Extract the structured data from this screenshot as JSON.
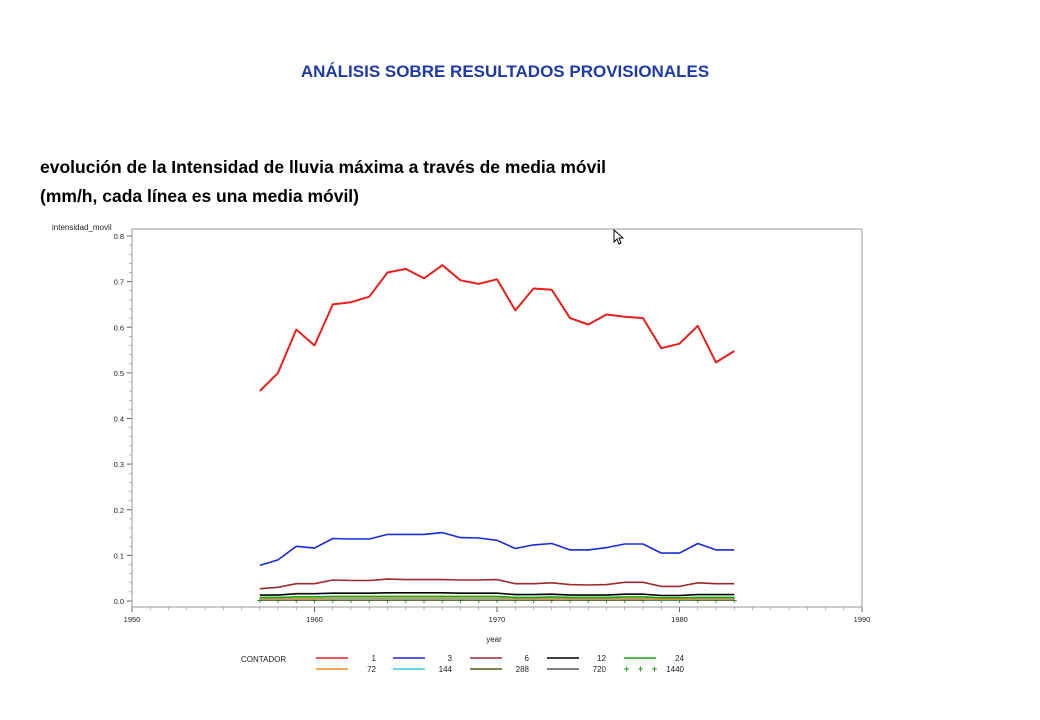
{
  "slide": {
    "title": "ANÁLISIS SOBRE RESULTADOS PROVISIONALES",
    "subtitle_line1": "evolución de la Intensidad de lluvia máxima a través de media móvil",
    "subtitle_line2": "(mm/h, cada línea es una media móvil)"
  },
  "chart_data": {
    "type": "line",
    "ylabel": "intensidad_movil",
    "xlabel": "year",
    "xlim": [
      1950,
      1990
    ],
    "ylim": [
      0.0,
      0.8
    ],
    "x_ticks": [
      "1950",
      "1960",
      "1970",
      "1980",
      "1990"
    ],
    "y_ticks": [
      "0.0",
      "0.1",
      "0.2",
      "0.3",
      "0.4",
      "0.5",
      "0.6",
      "0.7",
      "0.8"
    ],
    "legend_title": "CONTADOR",
    "legend_position": "bottom",
    "x": [
      1957,
      1958,
      1959,
      1960,
      1961,
      1962,
      1963,
      1964,
      1965,
      1966,
      1967,
      1968,
      1969,
      1970,
      1971,
      1972,
      1973,
      1974,
      1975,
      1976,
      1977,
      1978,
      1979,
      1980,
      1981,
      1982,
      1983
    ],
    "series": [
      {
        "name": "1",
        "color": "#e8201c",
        "style": "line",
        "values": [
          0.46,
          0.5,
          0.595,
          0.56,
          0.65,
          0.655,
          0.667,
          0.72,
          0.728,
          0.707,
          0.736,
          0.703,
          0.695,
          0.705,
          0.637,
          0.685,
          0.682,
          0.62,
          0.606,
          0.628,
          0.623,
          0.62,
          0.554,
          0.564,
          0.603,
          0.523,
          0.548
        ]
      },
      {
        "name": "3",
        "color": "#1a2ad6",
        "style": "line",
        "values": [
          0.078,
          0.09,
          0.12,
          0.116,
          0.137,
          0.136,
          0.136,
          0.146,
          0.146,
          0.146,
          0.15,
          0.139,
          0.138,
          0.133,
          0.115,
          0.123,
          0.126,
          0.112,
          0.112,
          0.117,
          0.125,
          0.125,
          0.105,
          0.105,
          0.126,
          0.112,
          0.112
        ]
      },
      {
        "name": "6",
        "color": "#9a2a2a",
        "style": "line",
        "values": [
          0.027,
          0.03,
          0.038,
          0.038,
          0.046,
          0.045,
          0.045,
          0.048,
          0.047,
          0.047,
          0.047,
          0.046,
          0.046,
          0.047,
          0.038,
          0.038,
          0.04,
          0.036,
          0.035,
          0.036,
          0.041,
          0.041,
          0.032,
          0.032,
          0.04,
          0.038,
          0.038
        ]
      },
      {
        "name": "12",
        "color": "#000000",
        "style": "line",
        "values": [
          0.013,
          0.013,
          0.016,
          0.016,
          0.017,
          0.017,
          0.017,
          0.018,
          0.018,
          0.018,
          0.018,
          0.017,
          0.017,
          0.017,
          0.014,
          0.014,
          0.015,
          0.013,
          0.013,
          0.013,
          0.015,
          0.015,
          0.012,
          0.012,
          0.014,
          0.014,
          0.014
        ]
      },
      {
        "name": "24",
        "color": "#15a21b",
        "style": "line",
        "values": [
          0.008,
          0.008,
          0.009,
          0.009,
          0.01,
          0.01,
          0.01,
          0.01,
          0.01,
          0.01,
          0.01,
          0.01,
          0.01,
          0.01,
          0.008,
          0.008,
          0.009,
          0.008,
          0.008,
          0.008,
          0.009,
          0.009,
          0.007,
          0.007,
          0.008,
          0.008,
          0.008
        ]
      },
      {
        "name": "72",
        "color": "#f08a1c",
        "style": "line",
        "values": [
          0.005,
          0.005,
          0.005,
          0.005,
          0.006,
          0.006,
          0.006,
          0.006,
          0.006,
          0.006,
          0.006,
          0.006,
          0.006,
          0.006,
          0.005,
          0.005,
          0.005,
          0.005,
          0.005,
          0.005,
          0.005,
          0.005,
          0.004,
          0.004,
          0.005,
          0.005,
          0.005
        ]
      },
      {
        "name": "144",
        "color": "#31c6f0",
        "style": "line",
        "values": [
          0.004,
          0.004,
          0.004,
          0.004,
          0.004,
          0.004,
          0.004,
          0.004,
          0.004,
          0.004,
          0.004,
          0.004,
          0.004,
          0.004,
          0.004,
          0.004,
          0.004,
          0.004,
          0.004,
          0.004,
          0.004,
          0.004,
          0.003,
          0.003,
          0.004,
          0.004,
          0.004
        ]
      },
      {
        "name": "288",
        "color": "#5a5a10",
        "style": "line",
        "values": [
          0.003,
          0.003,
          0.003,
          0.003,
          0.003,
          0.003,
          0.003,
          0.003,
          0.003,
          0.003,
          0.003,
          0.003,
          0.003,
          0.003,
          0.003,
          0.003,
          0.003,
          0.003,
          0.003,
          0.003,
          0.003,
          0.003,
          0.002,
          0.002,
          0.003,
          0.003,
          0.003
        ]
      },
      {
        "name": "720",
        "color": "#555555",
        "style": "line",
        "values": [
          0.002,
          0.002,
          0.002,
          0.002,
          0.002,
          0.002,
          0.002,
          0.002,
          0.002,
          0.002,
          0.002,
          0.002,
          0.002,
          0.002,
          0.002,
          0.002,
          0.002,
          0.002,
          0.002,
          0.002,
          0.002,
          0.002,
          0.002,
          0.002,
          0.002,
          0.002,
          0.002
        ]
      },
      {
        "name": "1440",
        "color": "#2aa02a",
        "style": "plus",
        "values": [
          0.001,
          0.001,
          0.001,
          0.001,
          0.001,
          0.001,
          0.001,
          0.001,
          0.001,
          0.001,
          0.001,
          0.001,
          0.001,
          0.001,
          0.001,
          0.001,
          0.001,
          0.001,
          0.001,
          0.001,
          0.001,
          0.001,
          0.001,
          0.001,
          0.001,
          0.001,
          0.001
        ]
      }
    ]
  }
}
